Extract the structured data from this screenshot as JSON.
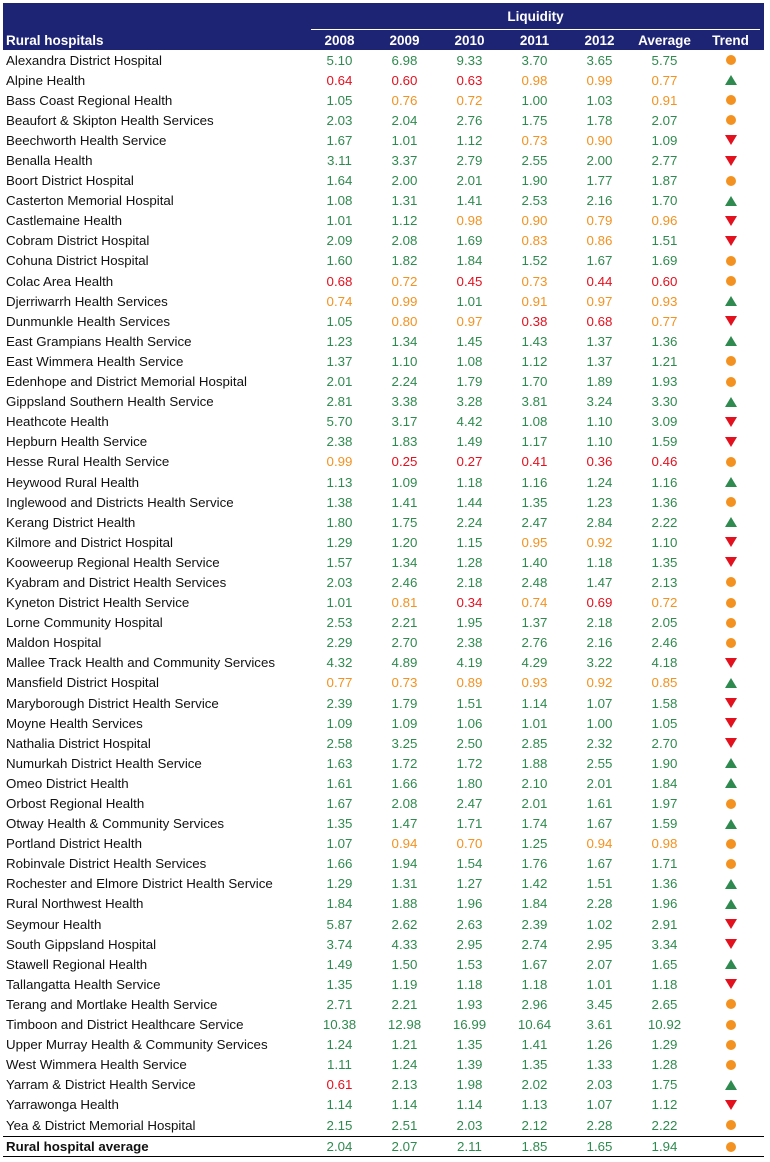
{
  "header": {
    "group": "Liquidity",
    "name_col": "Rural hospitals",
    "cols": [
      "2008",
      "2009",
      "2010",
      "2011",
      "2012",
      "Average",
      "Trend"
    ]
  },
  "colors": {
    "green": "#2f8a4f",
    "orange": "#f39220",
    "red": "#e3101e",
    "header_bg": "#1e2474"
  },
  "rows": [
    {
      "name": "Alexandra District Hospital",
      "values": [
        "5.10",
        "6.98",
        "9.33",
        "3.70",
        "3.65",
        "5.75"
      ],
      "trend": "dot"
    },
    {
      "name": "Alpine Health",
      "values": [
        "0.64",
        "0.60",
        "0.63",
        "0.98",
        "0.99",
        "0.77"
      ],
      "trend": "up"
    },
    {
      "name": "Bass Coast Regional Health",
      "values": [
        "1.05",
        "0.76",
        "0.72",
        "1.00",
        "1.03",
        "0.91"
      ],
      "trend": "dot"
    },
    {
      "name": "Beaufort & Skipton Health Services",
      "values": [
        "2.03",
        "2.04",
        "2.76",
        "1.75",
        "1.78",
        "2.07"
      ],
      "trend": "dot"
    },
    {
      "name": "Beechworth Health Service",
      "values": [
        "1.67",
        "1.01",
        "1.12",
        "0.73",
        "0.90",
        "1.09"
      ],
      "trend": "down"
    },
    {
      "name": "Benalla Health",
      "values": [
        "3.11",
        "3.37",
        "2.79",
        "2.55",
        "2.00",
        "2.77"
      ],
      "trend": "down"
    },
    {
      "name": "Boort District Hospital",
      "values": [
        "1.64",
        "2.00",
        "2.01",
        "1.90",
        "1.77",
        "1.87"
      ],
      "trend": "dot"
    },
    {
      "name": "Casterton Memorial Hospital",
      "values": [
        "1.08",
        "1.31",
        "1.41",
        "2.53",
        "2.16",
        "1.70"
      ],
      "trend": "up"
    },
    {
      "name": "Castlemaine Health",
      "values": [
        "1.01",
        "1.12",
        "0.98",
        "0.90",
        "0.79",
        "0.96"
      ],
      "trend": "down"
    },
    {
      "name": "Cobram District Hospital",
      "values": [
        "2.09",
        "2.08",
        "1.69",
        "0.83",
        "0.86",
        "1.51"
      ],
      "trend": "down"
    },
    {
      "name": "Cohuna District Hospital",
      "values": [
        "1.60",
        "1.82",
        "1.84",
        "1.52",
        "1.67",
        "1.69"
      ],
      "trend": "dot"
    },
    {
      "name": "Colac Area Health",
      "values": [
        "0.68",
        "0.72",
        "0.45",
        "0.73",
        "0.44",
        "0.60"
      ],
      "trend": "dot"
    },
    {
      "name": "Djerriwarrh Health Services",
      "values": [
        "0.74",
        "0.99",
        "1.01",
        "0.91",
        "0.97",
        "0.93"
      ],
      "trend": "up"
    },
    {
      "name": "Dunmunkle Health Services",
      "values": [
        "1.05",
        "0.80",
        "0.97",
        "0.38",
        "0.68",
        "0.77"
      ],
      "trend": "down"
    },
    {
      "name": "East Grampians Health Service",
      "values": [
        "1.23",
        "1.34",
        "1.45",
        "1.43",
        "1.37",
        "1.36"
      ],
      "trend": "up"
    },
    {
      "name": "East Wimmera Health Service",
      "values": [
        "1.37",
        "1.10",
        "1.08",
        "1.12",
        "1.37",
        "1.21"
      ],
      "trend": "dot"
    },
    {
      "name": "Edenhope and District Memorial Hospital",
      "values": [
        "2.01",
        "2.24",
        "1.79",
        "1.70",
        "1.89",
        "1.93"
      ],
      "trend": "dot"
    },
    {
      "name": "Gippsland Southern Health Service",
      "values": [
        "2.81",
        "3.38",
        "3.28",
        "3.81",
        "3.24",
        "3.30"
      ],
      "trend": "up"
    },
    {
      "name": "Heathcote Health",
      "values": [
        "5.70",
        "3.17",
        "4.42",
        "1.08",
        "1.10",
        "3.09"
      ],
      "trend": "down"
    },
    {
      "name": "Hepburn Health Service",
      "values": [
        "2.38",
        "1.83",
        "1.49",
        "1.17",
        "1.10",
        "1.59"
      ],
      "trend": "down"
    },
    {
      "name": "Hesse Rural Health Service",
      "values": [
        "0.99",
        "0.25",
        "0.27",
        "0.41",
        "0.36",
        "0.46"
      ],
      "trend": "dot"
    },
    {
      "name": "Heywood Rural Health",
      "values": [
        "1.13",
        "1.09",
        "1.18",
        "1.16",
        "1.24",
        "1.16"
      ],
      "trend": "up"
    },
    {
      "name": "Inglewood and Districts Health Service",
      "values": [
        "1.38",
        "1.41",
        "1.44",
        "1.35",
        "1.23",
        "1.36"
      ],
      "trend": "dot"
    },
    {
      "name": "Kerang District Health",
      "values": [
        "1.80",
        "1.75",
        "2.24",
        "2.47",
        "2.84",
        "2.22"
      ],
      "trend": "up"
    },
    {
      "name": "Kilmore and District Hospital",
      "values": [
        "1.29",
        "1.20",
        "1.15",
        "0.95",
        "0.92",
        "1.10"
      ],
      "trend": "down"
    },
    {
      "name": "Kooweerup Regional Health Service",
      "values": [
        "1.57",
        "1.34",
        "1.28",
        "1.40",
        "1.18",
        "1.35"
      ],
      "trend": "down"
    },
    {
      "name": "Kyabram and District Health Services",
      "values": [
        "2.03",
        "2.46",
        "2.18",
        "2.48",
        "1.47",
        "2.13"
      ],
      "trend": "dot"
    },
    {
      "name": "Kyneton District Health Service",
      "values": [
        "1.01",
        "0.81",
        "0.34",
        "0.74",
        "0.69",
        "0.72"
      ],
      "trend": "dot"
    },
    {
      "name": "Lorne Community Hospital",
      "values": [
        "2.53",
        "2.21",
        "1.95",
        "1.37",
        "2.18",
        "2.05"
      ],
      "trend": "dot"
    },
    {
      "name": "Maldon Hospital",
      "values": [
        "2.29",
        "2.70",
        "2.38",
        "2.76",
        "2.16",
        "2.46"
      ],
      "trend": "dot"
    },
    {
      "name": "Mallee Track Health and Community Services",
      "values": [
        "4.32",
        "4.89",
        "4.19",
        "4.29",
        "3.22",
        "4.18"
      ],
      "trend": "down"
    },
    {
      "name": "Mansfield District Hospital",
      "values": [
        "0.77",
        "0.73",
        "0.89",
        "0.93",
        "0.92",
        "0.85"
      ],
      "trend": "up"
    },
    {
      "name": "Maryborough District Health Service",
      "values": [
        "2.39",
        "1.79",
        "1.51",
        "1.14",
        "1.07",
        "1.58"
      ],
      "trend": "down"
    },
    {
      "name": "Moyne Health Services",
      "values": [
        "1.09",
        "1.09",
        "1.06",
        "1.01",
        "1.00",
        "1.05"
      ],
      "trend": "down"
    },
    {
      "name": "Nathalia District Hospital",
      "values": [
        "2.58",
        "3.25",
        "2.50",
        "2.85",
        "2.32",
        "2.70"
      ],
      "trend": "down"
    },
    {
      "name": "Numurkah District Health Service",
      "values": [
        "1.63",
        "1.72",
        "1.72",
        "1.88",
        "2.55",
        "1.90"
      ],
      "trend": "up"
    },
    {
      "name": "Omeo District Health",
      "values": [
        "1.61",
        "1.66",
        "1.80",
        "2.10",
        "2.01",
        "1.84"
      ],
      "trend": "up"
    },
    {
      "name": "Orbost Regional Health",
      "values": [
        "1.67",
        "2.08",
        "2.47",
        "2.01",
        "1.61",
        "1.97"
      ],
      "trend": "dot"
    },
    {
      "name": "Otway Health & Community Services",
      "values": [
        "1.35",
        "1.47",
        "1.71",
        "1.74",
        "1.67",
        "1.59"
      ],
      "trend": "up"
    },
    {
      "name": "Portland District Health",
      "values": [
        "1.07",
        "0.94",
        "0.70",
        "1.25",
        "0.94",
        "0.98"
      ],
      "trend": "dot"
    },
    {
      "name": "Robinvale District Health Services",
      "values": [
        "1.66",
        "1.94",
        "1.54",
        "1.76",
        "1.67",
        "1.71"
      ],
      "trend": "dot"
    },
    {
      "name": "Rochester and Elmore District Health Service",
      "values": [
        "1.29",
        "1.31",
        "1.27",
        "1.42",
        "1.51",
        "1.36"
      ],
      "trend": "up"
    },
    {
      "name": "Rural Northwest Health",
      "values": [
        "1.84",
        "1.88",
        "1.96",
        "1.84",
        "2.28",
        "1.96"
      ],
      "trend": "up"
    },
    {
      "name": "Seymour Health",
      "values": [
        "5.87",
        "2.62",
        "2.63",
        "2.39",
        "1.02",
        "2.91"
      ],
      "trend": "down"
    },
    {
      "name": "South Gippsland Hospital",
      "values": [
        "3.74",
        "4.33",
        "2.95",
        "2.74",
        "2.95",
        "3.34"
      ],
      "trend": "down"
    },
    {
      "name": "Stawell Regional Health",
      "values": [
        "1.49",
        "1.50",
        "1.53",
        "1.67",
        "2.07",
        "1.65"
      ],
      "trend": "up"
    },
    {
      "name": "Tallangatta Health Service",
      "values": [
        "1.35",
        "1.19",
        "1.18",
        "1.18",
        "1.01",
        "1.18"
      ],
      "trend": "down"
    },
    {
      "name": "Terang and Mortlake Health Service",
      "values": [
        "2.71",
        "2.21",
        "1.93",
        "2.96",
        "3.45",
        "2.65"
      ],
      "trend": "dot"
    },
    {
      "name": "Timboon and District Healthcare Service",
      "values": [
        "10.38",
        "12.98",
        "16.99",
        "10.64",
        "3.61",
        "10.92"
      ],
      "trend": "dot"
    },
    {
      "name": "Upper Murray Health & Community Services",
      "values": [
        "1.24",
        "1.21",
        "1.35",
        "1.41",
        "1.26",
        "1.29"
      ],
      "trend": "dot"
    },
    {
      "name": "West Wimmera Health Service",
      "values": [
        "1.11",
        "1.24",
        "1.39",
        "1.35",
        "1.33",
        "1.28"
      ],
      "trend": "dot"
    },
    {
      "name": "Yarram & District Health Service",
      "values": [
        "0.61",
        "2.13",
        "1.98",
        "2.02",
        "2.03",
        "1.75"
      ],
      "trend": "up"
    },
    {
      "name": "Yarrawonga Health",
      "values": [
        "1.14",
        "1.14",
        "1.14",
        "1.13",
        "1.07",
        "1.12"
      ],
      "trend": "down"
    },
    {
      "name": "Yea & District Memorial Hospital",
      "values": [
        "2.15",
        "2.51",
        "2.03",
        "2.12",
        "2.28",
        "2.22"
      ],
      "trend": "dot"
    }
  ],
  "average_row": {
    "name": "Rural hospital average",
    "values": [
      "2.04",
      "2.07",
      "2.11",
      "1.85",
      "1.65",
      "1.94"
    ],
    "trend": "dot"
  }
}
